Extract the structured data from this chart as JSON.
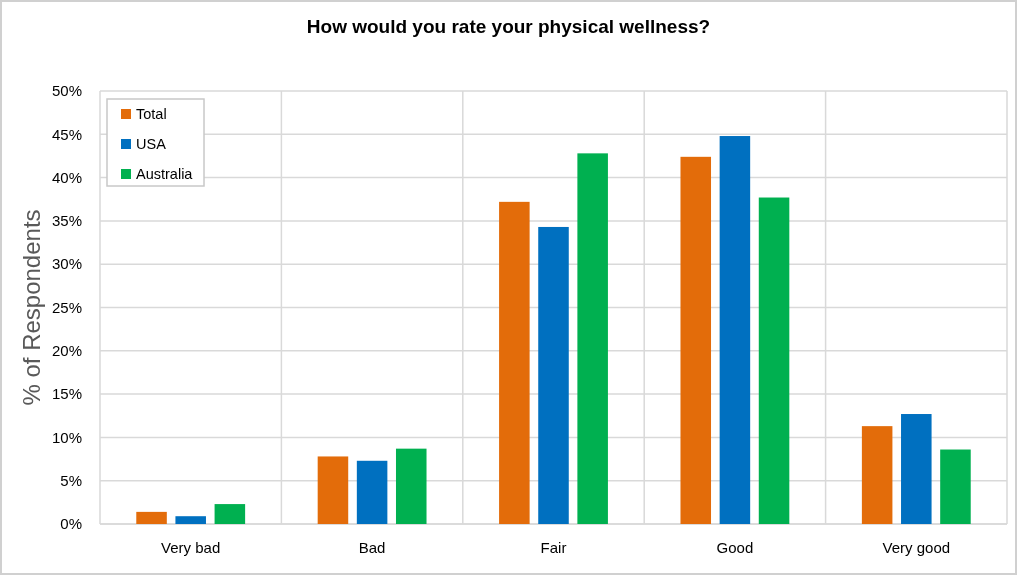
{
  "chart_data": {
    "type": "bar",
    "title": "How would you rate your physical wellness?",
    "ylabel": "% of Respondents",
    "categories": [
      "Very bad",
      "Bad",
      "Fair",
      "Good",
      "Very good"
    ],
    "series": [
      {
        "name": "Total",
        "color": "#e36c0a",
        "values": [
          1.4,
          7.8,
          37.2,
          42.4,
          11.3
        ]
      },
      {
        "name": "USA",
        "color": "#0070c0",
        "values": [
          0.9,
          7.3,
          34.3,
          44.8,
          12.7
        ]
      },
      {
        "name": "Australia",
        "color": "#00b050",
        "values": [
          2.3,
          8.7,
          42.8,
          37.7,
          8.6
        ]
      }
    ],
    "ylim": [
      0,
      50
    ],
    "yticks": [
      {
        "value": 0,
        "label": "0%"
      },
      {
        "value": 5,
        "label": "5%"
      },
      {
        "value": 10,
        "label": "10%"
      },
      {
        "value": 15,
        "label": "15%"
      },
      {
        "value": 20,
        "label": "20%"
      },
      {
        "value": 25,
        "label": "25%"
      },
      {
        "value": 30,
        "label": "30%"
      },
      {
        "value": 35,
        "label": "35%"
      },
      {
        "value": 40,
        "label": "40%"
      },
      {
        "value": 45,
        "label": "45%"
      },
      {
        "value": 50,
        "label": "50%"
      }
    ],
    "grid": true,
    "legend": "top left"
  }
}
